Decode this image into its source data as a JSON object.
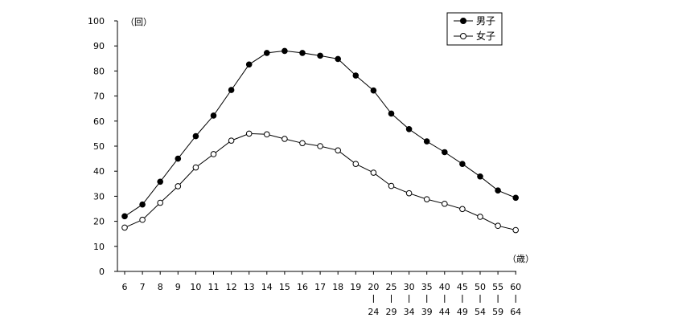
{
  "chart_data": {
    "type": "line",
    "y_unit_label": "（回）",
    "x_unit_label": "（歳）",
    "ylim": [
      0,
      100
    ],
    "y_ticks": [
      0,
      10,
      20,
      30,
      40,
      50,
      60,
      70,
      80,
      90,
      100
    ],
    "grid": false,
    "legend_position": "top-right",
    "categories": [
      {
        "top": "6",
        "bottom": ""
      },
      {
        "top": "7",
        "bottom": ""
      },
      {
        "top": "8",
        "bottom": ""
      },
      {
        "top": "9",
        "bottom": ""
      },
      {
        "top": "10",
        "bottom": ""
      },
      {
        "top": "11",
        "bottom": ""
      },
      {
        "top": "12",
        "bottom": ""
      },
      {
        "top": "13",
        "bottom": ""
      },
      {
        "top": "14",
        "bottom": ""
      },
      {
        "top": "15",
        "bottom": ""
      },
      {
        "top": "16",
        "bottom": ""
      },
      {
        "top": "17",
        "bottom": ""
      },
      {
        "top": "18",
        "bottom": ""
      },
      {
        "top": "19",
        "bottom": ""
      },
      {
        "top": "20",
        "bottom": "24"
      },
      {
        "top": "25",
        "bottom": "29"
      },
      {
        "top": "30",
        "bottom": "34"
      },
      {
        "top": "35",
        "bottom": "39"
      },
      {
        "top": "40",
        "bottom": "44"
      },
      {
        "top": "45",
        "bottom": "49"
      },
      {
        "top": "50",
        "bottom": "54"
      },
      {
        "top": "55",
        "bottom": "59"
      },
      {
        "top": "60",
        "bottom": "64"
      }
    ],
    "series": [
      {
        "name": "男子",
        "marker": "filled-circle",
        "color": "#000000",
        "values": [
          22.0,
          26.7,
          35.8,
          45.0,
          54.0,
          62.2,
          72.4,
          82.6,
          87.2,
          88.0,
          87.2,
          86.1,
          84.8,
          78.2,
          72.2,
          63.0,
          56.8,
          51.9,
          47.6,
          42.9,
          37.9,
          32.3,
          29.4
        ]
      },
      {
        "name": "女子",
        "marker": "open-circle",
        "color": "#000000",
        "values": [
          17.5,
          20.6,
          27.4,
          34.0,
          41.5,
          46.8,
          52.2,
          55.0,
          54.7,
          52.9,
          51.2,
          50.0,
          48.3,
          42.9,
          39.4,
          34.1,
          31.2,
          28.8,
          27.0,
          24.9,
          21.8,
          18.2,
          16.5
        ]
      }
    ]
  }
}
